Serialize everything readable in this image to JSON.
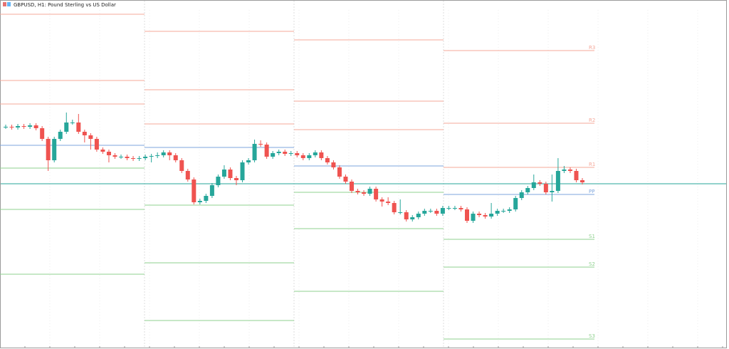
{
  "chart_data": {
    "type": "candlestick",
    "title": "GBPUSD, H1: Pound Sterling vs US Dollar",
    "ylim": [
      0,
      490
    ],
    "up_color": "#26a69a",
    "down_color": "#ef5350",
    "open": [
      312,
      312,
      311,
      313,
      312,
      314,
      310,
      295,
      265,
      295,
      305,
      318,
      318,
      305,
      300,
      295,
      280,
      277,
      272,
      270,
      270,
      268,
      267,
      268,
      270,
      271,
      272,
      276,
      272,
      265,
      250,
      238,
      206,
      208,
      215,
      230,
      242,
      252,
      240,
      237,
      262,
      265,
      288,
      287,
      270,
      275,
      277,
      274,
      275,
      272,
      268,
      272,
      276,
      268,
      262,
      255,
      242,
      235,
      222,
      220,
      218,
      225,
      210,
      207,
      205,
      192,
      192,
      182,
      185,
      190,
      194,
      194,
      190,
      198,
      198,
      198,
      196,
      180,
      190,
      188,
      186,
      190,
      194,
      194,
      196,
      212,
      220,
      226,
      234,
      232,
      220,
      222,
      250,
      252,
      250,
      237
    ],
    "high": [
      315,
      315,
      316,
      316,
      317,
      317,
      313,
      298,
      298,
      308,
      332,
      322,
      330,
      308,
      303,
      298,
      283,
      280,
      275,
      273,
      273,
      271,
      271,
      273,
      274,
      276,
      279,
      279,
      275,
      268,
      253,
      241,
      211,
      218,
      233,
      245,
      258,
      255,
      243,
      265,
      268,
      294,
      293,
      290,
      278,
      280,
      280,
      278,
      278,
      275,
      275,
      279,
      279,
      271,
      265,
      258,
      245,
      238,
      225,
      223,
      228,
      228,
      213,
      213,
      208,
      210,
      195,
      188,
      193,
      197,
      197,
      197,
      201,
      201,
      201,
      201,
      199,
      193,
      193,
      191,
      205,
      197,
      197,
      199,
      215,
      223,
      229,
      245,
      237,
      235,
      245,
      268,
      257,
      255,
      253,
      240
    ],
    "low": [
      309,
      308,
      308,
      309,
      309,
      307,
      292,
      250,
      262,
      292,
      302,
      315,
      302,
      290,
      280,
      277,
      274,
      262,
      267,
      267,
      265,
      264,
      264,
      265,
      262,
      268,
      269,
      265,
      262,
      247,
      235,
      203,
      203,
      205,
      212,
      227,
      239,
      237,
      230,
      234,
      259,
      262,
      284,
      267,
      267,
      272,
      271,
      271,
      269,
      265,
      265,
      269,
      265,
      259,
      252,
      239,
      232,
      219,
      217,
      215,
      215,
      207,
      200,
      202,
      189,
      189,
      179,
      179,
      182,
      187,
      191,
      187,
      187,
      195,
      195,
      193,
      177,
      177,
      185,
      183,
      183,
      187,
      191,
      191,
      193,
      209,
      217,
      223,
      229,
      217,
      207,
      219,
      247,
      247,
      234,
      231
    ],
    "close": [
      312,
      311,
      313,
      312,
      314,
      310,
      295,
      265,
      295,
      305,
      318,
      318,
      305,
      300,
      295,
      280,
      277,
      272,
      270,
      270,
      268,
      267,
      268,
      270,
      271,
      272,
      276,
      272,
      265,
      250,
      238,
      206,
      208,
      215,
      230,
      242,
      252,
      240,
      237,
      262,
      265,
      288,
      287,
      270,
      275,
      277,
      274,
      275,
      272,
      268,
      272,
      276,
      268,
      262,
      255,
      242,
      235,
      222,
      220,
      218,
      225,
      210,
      207,
      205,
      192,
      192,
      182,
      185,
      190,
      194,
      194,
      190,
      198,
      198,
      198,
      196,
      180,
      190,
      188,
      186,
      190,
      194,
      194,
      196,
      212,
      220,
      226,
      234,
      232,
      220,
      222,
      250,
      252,
      250,
      237,
      234
    ],
    "current_price": 232,
    "current_price_color": "#26a69a",
    "pivot_names": [
      "R3",
      "R2",
      "R1",
      "PP",
      "S1",
      "S2",
      "S3"
    ],
    "pivot_colors": [
      "#f4a89a",
      "#f4a89a",
      "#f4a89a",
      "#7ea6dd",
      "#8fd18f",
      "#8fd18f",
      "#8fd18f"
    ],
    "pivots": [
      [
        470,
        377,
        344,
        286,
        254,
        196,
        105
      ],
      [
        446,
        364,
        316,
        283,
        202,
        121,
        40
      ],
      [
        434,
        348,
        308,
        257,
        220,
        169,
        81
      ],
      [
        419,
        317,
        255,
        217,
        154,
        115,
        14
      ]
    ]
  }
}
